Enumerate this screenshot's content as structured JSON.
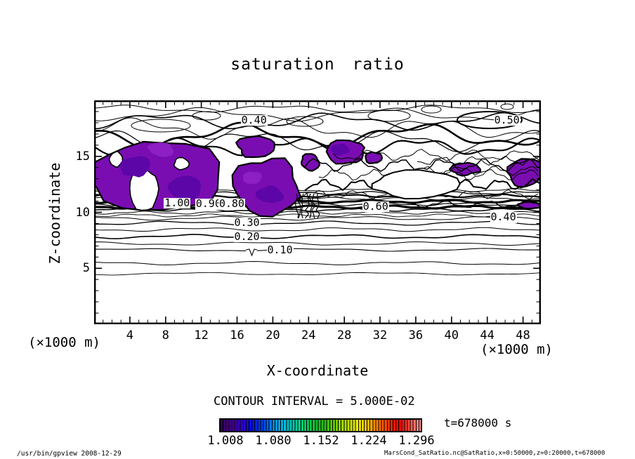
{
  "title": "saturation ratio",
  "axes": {
    "x_label": "X-coordinate",
    "y_label": "Z-coordinate",
    "unit_left": "(×1000 m)",
    "unit_right": "(×1000 m)",
    "x_major_ticks": [
      4,
      8,
      12,
      16,
      20,
      24,
      28,
      32,
      36,
      40,
      44,
      48
    ],
    "y_major_ticks": [
      5,
      10,
      15
    ],
    "xlim": [
      0,
      50
    ],
    "ylim": [
      0,
      20
    ]
  },
  "colorbar": {
    "interval_text": "CONTOUR INTERVAL = 5.000E-02",
    "labels": [
      "1.008",
      "1.080",
      "1.152",
      "1.224",
      "1.296"
    ],
    "colors": [
      "#2b0050",
      "#4b0090",
      "#3300cc",
      "#0011dd",
      "#0044ee",
      "#0088ee",
      "#00bbdd",
      "#00ccaa",
      "#00cc66",
      "#11bb33",
      "#33bb11",
      "#77cc00",
      "#bbdd00",
      "#eeee00",
      "#ffbb00",
      "#ff7700",
      "#ff3300",
      "#ee0000",
      "#ff5544",
      "#ff9999"
    ]
  },
  "time_text": "t=678000 s",
  "footer": {
    "left": "/usr/bin/gpview  2008-12-29",
    "right": "MarsCond_SatRatio.nc@SatRatio,x=0:50000,z=0:20000,t=678000"
  },
  "chart_data": {
    "type": "heatmap",
    "subtype": "filled-contour",
    "title": "saturation ratio",
    "xlabel": "X-coordinate",
    "ylabel": "Z-coordinate",
    "x_unit": "(×1000 m)",
    "y_unit": "(×1000 m)",
    "xlim": [
      0,
      50
    ],
    "ylim": [
      0,
      20
    ],
    "x_major_ticks": [
      4,
      8,
      12,
      16,
      20,
      24,
      28,
      32,
      36,
      40,
      44,
      48
    ],
    "y_major_ticks": [
      5,
      10,
      15
    ],
    "contour_interval": 0.05,
    "grid": false,
    "legend_position": "bottom-colorbar",
    "colorbar_tick_values": [
      1.008,
      1.08,
      1.152,
      1.224,
      1.296
    ],
    "shaded_fill": {
      "color": "#7a0db2",
      "meaning": "saturation ratio above 1.0 (supersaturated regions)"
    },
    "annotation": "t=678000 s",
    "contour_labels": [
      {
        "value": "0.40",
        "x": 17.9,
        "z": 18.2
      },
      {
        "value": "0.50",
        "x": 46.2,
        "z": 18.2
      },
      {
        "value": "1.00",
        "x": 9.3,
        "z": 10.8
      },
      {
        "value": "0.90",
        "x": 12.8,
        "z": 10.7
      },
      {
        "value": "0.80",
        "x": 15.4,
        "z": 10.7
      },
      {
        "value": "0.60",
        "x": 31.5,
        "z": 10.5
      },
      {
        "value": "0.40",
        "x": 45.8,
        "z": 9.5
      },
      {
        "value": "0.30",
        "x": 17.1,
        "z": 9.0
      },
      {
        "value": "0.20",
        "x": 17.1,
        "z": 7.8
      },
      {
        "value": "0.10",
        "x": 20.8,
        "z": 6.6
      }
    ]
  }
}
